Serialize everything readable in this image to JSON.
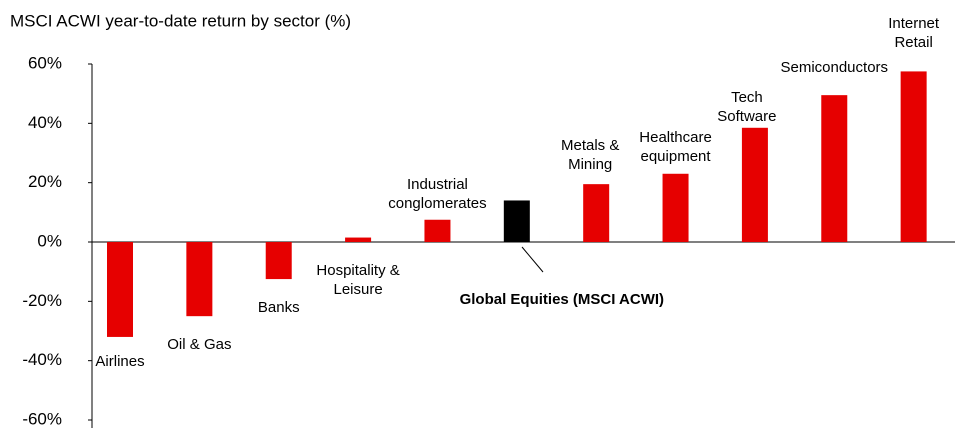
{
  "chart_data": {
    "type": "bar",
    "title": "MSCI  ACWI year-to-date return by sector (%)",
    "categories": [
      [
        "Airlines"
      ],
      [
        "Oil & Gas"
      ],
      [
        "Banks"
      ],
      [
        "Hospitality &",
        "Leisure"
      ],
      [
        "Industrial",
        "conglomerates"
      ],
      [
        "Global Equities (MSCI ACWI)"
      ],
      [
        "Metals &",
        "Mining"
      ],
      [
        "Healthcare",
        "equipment"
      ],
      [
        "Tech",
        "Software"
      ],
      [
        "Semiconductors"
      ],
      [
        "Internet",
        "Retail"
      ]
    ],
    "values": [
      -32,
      -25,
      -12.5,
      1.5,
      7.5,
      14,
      19.5,
      23,
      38.5,
      49.5,
      57.5
    ],
    "colors": [
      "#e60000",
      "#e60000",
      "#e60000",
      "#e60000",
      "#e60000",
      "#000000",
      "#e60000",
      "#e60000",
      "#e60000",
      "#e60000",
      "#e60000"
    ],
    "ylim": [
      -60,
      60
    ],
    "yticks": [
      {
        "value": 60,
        "label": "60%"
      },
      {
        "value": 40,
        "label": "40%"
      },
      {
        "value": 20,
        "label": "20%"
      },
      {
        "value": 0,
        "label": "0%"
      },
      {
        "value": -20,
        "label": "-20%"
      },
      {
        "value": -40,
        "label": "-40%"
      },
      {
        "value": -60,
        "label": "-60%"
      }
    ]
  }
}
